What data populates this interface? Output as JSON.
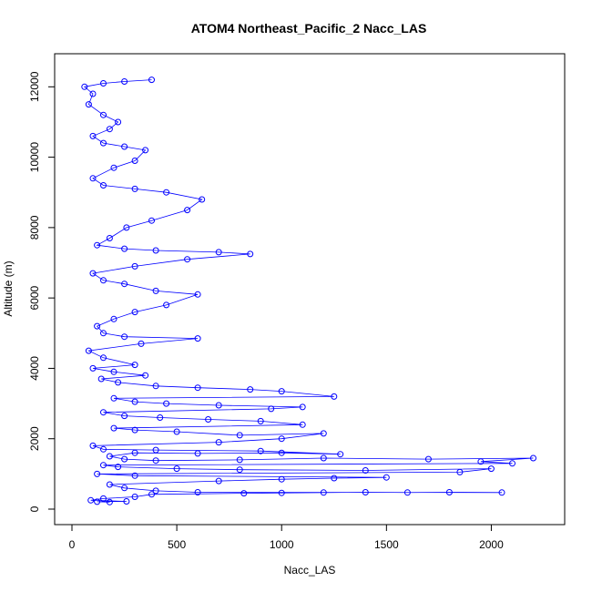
{
  "chart_data": {
    "type": "scatter",
    "title": "ATOM4 Northeast_Pacific_2 Nacc_LAS",
    "xlabel": "Nacc_LAS",
    "ylabel": "Altitude (m)",
    "xlim": [
      0,
      2250
    ],
    "ylim": [
      0,
      12500
    ],
    "x_ticks": [
      0,
      500,
      1000,
      1500,
      2000
    ],
    "y_ticks": [
      0,
      2000,
      4000,
      6000,
      8000,
      10000,
      12000
    ],
    "x_tick_labels": [
      "0",
      "500",
      "1000",
      "1500",
      "2000"
    ],
    "y_tick_labels": [
      "0",
      "2000",
      "4000",
      "6000",
      "8000",
      "10000",
      "12000"
    ],
    "grid": false,
    "series": [
      {
        "color": "#0000ff",
        "marker": "open-circle",
        "connected": true,
        "points": [
          [
            180,
            200
          ],
          [
            120,
            210
          ],
          [
            260,
            220
          ],
          [
            90,
            250
          ],
          [
            150,
            300
          ],
          [
            300,
            350
          ],
          [
            380,
            420
          ],
          [
            820,
            450
          ],
          [
            1000,
            460
          ],
          [
            1200,
            470
          ],
          [
            1400,
            480
          ],
          [
            1600,
            470
          ],
          [
            1800,
            480
          ],
          [
            2050,
            470
          ],
          [
            600,
            480
          ],
          [
            400,
            520
          ],
          [
            250,
            600
          ],
          [
            180,
            700
          ],
          [
            700,
            800
          ],
          [
            1000,
            850
          ],
          [
            1250,
            880
          ],
          [
            1500,
            900
          ],
          [
            300,
            950
          ],
          [
            120,
            1000
          ],
          [
            1850,
            1050
          ],
          [
            2000,
            1150
          ],
          [
            1400,
            1100
          ],
          [
            800,
            1120
          ],
          [
            500,
            1150
          ],
          [
            220,
            1200
          ],
          [
            150,
            1250
          ],
          [
            2100,
            1300
          ],
          [
            1950,
            1350
          ],
          [
            2200,
            1450
          ],
          [
            1700,
            1420
          ],
          [
            1200,
            1450
          ],
          [
            800,
            1400
          ],
          [
            400,
            1380
          ],
          [
            250,
            1420
          ],
          [
            180,
            1500
          ],
          [
            300,
            1600
          ],
          [
            600,
            1580
          ],
          [
            1000,
            1600
          ],
          [
            1280,
            1560
          ],
          [
            900,
            1650
          ],
          [
            400,
            1680
          ],
          [
            150,
            1700
          ],
          [
            100,
            1800
          ],
          [
            700,
            1900
          ],
          [
            1000,
            2000
          ],
          [
            1200,
            2150
          ],
          [
            800,
            2100
          ],
          [
            500,
            2200
          ],
          [
            300,
            2250
          ],
          [
            200,
            2300
          ],
          [
            1100,
            2400
          ],
          [
            900,
            2500
          ],
          [
            650,
            2550
          ],
          [
            420,
            2600
          ],
          [
            250,
            2650
          ],
          [
            150,
            2750
          ],
          [
            950,
            2850
          ],
          [
            1100,
            2900
          ],
          [
            700,
            2950
          ],
          [
            450,
            3000
          ],
          [
            300,
            3050
          ],
          [
            200,
            3150
          ],
          [
            1250,
            3200
          ],
          [
            1000,
            3350
          ],
          [
            850,
            3400
          ],
          [
            600,
            3450
          ],
          [
            400,
            3500
          ],
          [
            220,
            3600
          ],
          [
            140,
            3700
          ],
          [
            350,
            3800
          ],
          [
            200,
            3900
          ],
          [
            100,
            4000
          ],
          [
            300,
            4100
          ],
          [
            150,
            4300
          ],
          [
            80,
            4500
          ],
          [
            330,
            4700
          ],
          [
            600,
            4850
          ],
          [
            250,
            4900
          ],
          [
            150,
            5000
          ],
          [
            120,
            5200
          ],
          [
            200,
            5400
          ],
          [
            300,
            5600
          ],
          [
            450,
            5800
          ],
          [
            600,
            6100
          ],
          [
            400,
            6200
          ],
          [
            250,
            6400
          ],
          [
            150,
            6500
          ],
          [
            100,
            6700
          ],
          [
            300,
            6900
          ],
          [
            550,
            7100
          ],
          [
            850,
            7250
          ],
          [
            700,
            7300
          ],
          [
            400,
            7350
          ],
          [
            250,
            7400
          ],
          [
            120,
            7500
          ],
          [
            180,
            7700
          ],
          [
            260,
            8000
          ],
          [
            380,
            8200
          ],
          [
            550,
            8500
          ],
          [
            620,
            8800
          ],
          [
            450,
            9000
          ],
          [
            300,
            9100
          ],
          [
            150,
            9200
          ],
          [
            100,
            9400
          ],
          [
            200,
            9700
          ],
          [
            300,
            9900
          ],
          [
            350,
            10200
          ],
          [
            250,
            10300
          ],
          [
            150,
            10400
          ],
          [
            100,
            10600
          ],
          [
            180,
            10800
          ],
          [
            220,
            11000
          ],
          [
            150,
            11200
          ],
          [
            80,
            11500
          ],
          [
            100,
            11800
          ],
          [
            60,
            12000
          ],
          [
            150,
            12100
          ],
          [
            250,
            12150
          ],
          [
            380,
            12200
          ]
        ]
      }
    ]
  }
}
